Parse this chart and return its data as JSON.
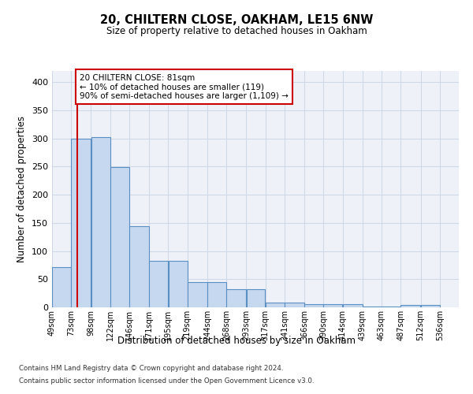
{
  "title": "20, CHILTERN CLOSE, OAKHAM, LE15 6NW",
  "subtitle": "Size of property relative to detached houses in Oakham",
  "xlabel": "Distribution of detached houses by size in Oakham",
  "ylabel": "Number of detached properties",
  "footer_line1": "Contains HM Land Registry data © Crown copyright and database right 2024.",
  "footer_line2": "Contains public sector information licensed under the Open Government Licence v3.0.",
  "bar_left_edges": [
    49,
    73,
    98,
    122,
    146,
    171,
    195,
    219,
    244,
    268,
    293,
    317,
    341,
    366,
    390,
    414,
    439,
    463,
    487,
    512
  ],
  "bar_widths": [
    24,
    25,
    24,
    24,
    25,
    24,
    24,
    25,
    24,
    25,
    24,
    24,
    25,
    24,
    24,
    25,
    24,
    24,
    25,
    24
  ],
  "bar_heights": [
    72,
    300,
    303,
    249,
    144,
    83,
    83,
    45,
    45,
    32,
    32,
    9,
    9,
    6,
    6,
    6,
    2,
    2,
    4,
    4
  ],
  "bar_color": "#c5d8f0",
  "bar_edgecolor": "#5a8fc4",
  "grid_color": "#d0d8e8",
  "background_color": "#eef2f8",
  "vline_x": 81,
  "vline_color": "#cc0000",
  "annotation_text": "20 CHILTERN CLOSE: 81sqm\n← 10% of detached houses are smaller (119)\n90% of semi-detached houses are larger (1,109) →",
  "annotation_box_color": "#cc0000",
  "ylim": [
    0,
    420
  ],
  "xlim": [
    49,
    560
  ],
  "yticks": [
    0,
    50,
    100,
    150,
    200,
    250,
    300,
    350,
    400
  ],
  "tick_labels": [
    "49sqm",
    "73sqm",
    "98sqm",
    "122sqm",
    "146sqm",
    "171sqm",
    "195sqm",
    "219sqm",
    "244sqm",
    "268sqm",
    "293sqm",
    "317sqm",
    "341sqm",
    "366sqm",
    "390sqm",
    "414sqm",
    "439sqm",
    "463sqm",
    "487sqm",
    "512sqm",
    "536sqm"
  ]
}
